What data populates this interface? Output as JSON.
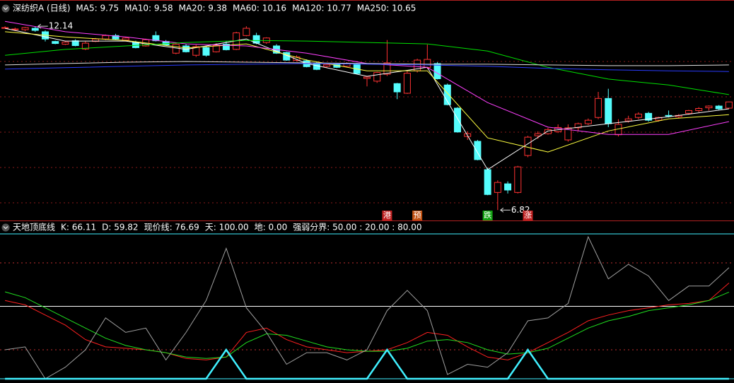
{
  "chart_data": [
    {
      "type": "candlestick",
      "title": "深纺织A (日线)",
      "xlim": [
        -0.5,
        72.5
      ],
      "ylim": [
        6.56,
        12.49
      ],
      "up_color": "#ff3232",
      "down_color": "#54fcfc",
      "candles": [
        [
          12.1,
          12.14,
          12.08,
          12.1
        ],
        [
          12.05,
          12.1,
          12.0,
          12.06
        ],
        [
          12.04,
          12.12,
          12.0,
          12.1
        ],
        [
          12.08,
          12.14,
          11.98,
          12.02
        ],
        [
          11.98,
          12.02,
          11.7,
          11.77
        ],
        [
          11.7,
          11.72,
          11.62,
          11.64
        ],
        [
          11.62,
          11.7,
          11.6,
          11.68
        ],
        [
          11.72,
          11.76,
          11.56,
          11.58
        ],
        [
          11.48,
          11.7,
          11.45,
          11.65
        ],
        [
          11.7,
          11.8,
          11.68,
          11.77
        ],
        [
          11.77,
          11.9,
          11.74,
          11.87
        ],
        [
          11.87,
          11.92,
          11.75,
          11.77
        ],
        [
          11.74,
          11.82,
          11.7,
          11.8
        ],
        [
          11.67,
          11.72,
          11.5,
          11.52
        ],
        [
          11.57,
          11.78,
          11.55,
          11.75
        ],
        [
          11.87,
          11.99,
          11.7,
          11.72
        ],
        [
          11.7,
          11.74,
          11.58,
          11.6
        ],
        [
          11.36,
          11.65,
          11.33,
          11.62
        ],
        [
          11.57,
          11.62,
          11.38,
          11.4
        ],
        [
          11.3,
          11.6,
          11.25,
          11.55
        ],
        [
          11.52,
          11.56,
          11.26,
          11.3
        ],
        [
          11.4,
          11.65,
          11.38,
          11.58
        ],
        [
          11.62,
          11.7,
          11.44,
          11.46
        ],
        [
          11.47,
          11.98,
          11.45,
          11.95
        ],
        [
          11.87,
          12.14,
          11.85,
          12.08
        ],
        [
          11.87,
          11.95,
          11.62,
          11.65
        ],
        [
          11.67,
          11.82,
          11.63,
          11.8
        ],
        [
          11.57,
          11.62,
          11.34,
          11.36
        ],
        [
          11.38,
          11.4,
          11.14,
          11.16
        ],
        [
          11.15,
          11.3,
          11.12,
          11.25
        ],
        [
          11.14,
          11.18,
          10.95,
          10.97
        ],
        [
          11.07,
          11.12,
          10.87,
          10.89
        ],
        [
          10.98,
          11.06,
          10.94,
          11.03
        ],
        [
          11.05,
          11.08,
          10.93,
          10.95
        ],
        [
          10.98,
          11.1,
          10.96,
          11.05
        ],
        [
          11.05,
          11.08,
          10.75,
          10.77
        ],
        [
          10.63,
          10.7,
          10.4,
          10.67
        ],
        [
          10.55,
          10.82,
          10.5,
          10.8
        ],
        [
          10.75,
          11.74,
          10.7,
          11.08
        ],
        [
          10.48,
          10.5,
          10.03,
          10.24
        ],
        [
          10.2,
          10.85,
          10.18,
          10.78
        ],
        [
          10.85,
          11.2,
          10.8,
          11.16
        ],
        [
          10.95,
          11.61,
          10.9,
          11.18
        ],
        [
          11.06,
          11.1,
          10.6,
          10.62
        ],
        [
          10.44,
          10.48,
          9.85,
          9.87
        ],
        [
          9.77,
          9.8,
          9.06,
          9.08
        ],
        [
          8.95,
          9.1,
          8.85,
          9.03
        ],
        [
          8.81,
          8.85,
          8.26,
          8.28
        ],
        [
          7.99,
          8.05,
          7.25,
          7.27
        ],
        [
          7.33,
          7.68,
          6.82,
          7.62
        ],
        [
          7.58,
          7.65,
          7.3,
          7.4
        ],
        [
          7.33,
          8.1,
          7.3,
          8.07
        ],
        [
          8.4,
          8.97,
          8.35,
          8.93
        ],
        [
          8.97,
          9.1,
          8.88,
          9.03
        ],
        [
          9.03,
          9.2,
          9.0,
          9.15
        ],
        [
          9.09,
          9.3,
          9.05,
          9.21
        ],
        [
          8.85,
          9.3,
          8.8,
          9.2
        ],
        [
          9.2,
          9.35,
          9.1,
          9.32
        ],
        [
          9.32,
          9.47,
          9.28,
          9.42
        ],
        [
          9.5,
          10.24,
          9.45,
          10.05
        ],
        [
          10.05,
          10.33,
          9.22,
          9.32
        ],
        [
          9.0,
          9.45,
          8.95,
          9.3
        ],
        [
          9.4,
          9.55,
          9.35,
          9.46
        ],
        [
          9.5,
          9.65,
          9.45,
          9.6
        ],
        [
          9.62,
          9.66,
          9.38,
          9.42
        ],
        [
          9.42,
          9.52,
          9.38,
          9.5
        ],
        [
          9.56,
          9.7,
          9.5,
          9.54
        ],
        [
          9.52,
          9.6,
          9.48,
          9.56
        ],
        [
          9.62,
          9.72,
          9.58,
          9.7
        ],
        [
          9.7,
          9.8,
          9.65,
          9.76
        ],
        [
          9.78,
          9.85,
          9.7,
          9.83
        ],
        [
          9.83,
          9.86,
          9.72,
          9.75
        ],
        [
          9.77,
          9.96,
          9.75,
          9.95
        ]
      ],
      "series": [
        {
          "name": "MA5: 9.75",
          "color": "#ffffff",
          "x": [
            0,
            6,
            12,
            18,
            24,
            30,
            36,
            42,
            48,
            54,
            60,
            66,
            72
          ],
          "values": [
            12.08,
            11.71,
            11.71,
            11.47,
            11.77,
            11.06,
            10.69,
            10.95,
            7.99,
            9.11,
            9.32,
            9.52,
            9.75
          ]
        },
        {
          "name": "MA10: 9.58",
          "color": "#ffff40",
          "x": [
            0,
            6,
            12,
            18,
            24,
            30,
            36,
            42,
            48,
            54,
            60,
            66,
            72
          ],
          "values": [
            11.98,
            11.83,
            11.73,
            11.51,
            11.63,
            11.16,
            10.85,
            10.85,
            8.91,
            8.5,
            9.11,
            9.46,
            9.58
          ]
        },
        {
          "name": "MA20: 9.38",
          "color": "#ff40ff",
          "x": [
            0,
            6,
            12,
            18,
            24,
            30,
            36,
            42,
            48,
            54,
            60,
            66,
            72
          ],
          "values": [
            12.28,
            11.98,
            11.83,
            11.63,
            11.57,
            11.36,
            11.06,
            10.95,
            9.93,
            9.22,
            9.01,
            9.01,
            9.38
          ]
        },
        {
          "name": "MA60: 10.16",
          "color": "#00e000",
          "x": [
            0,
            6,
            12,
            18,
            24,
            30,
            36,
            42,
            48,
            54,
            60,
            66,
            72
          ],
          "values": [
            11.3,
            11.47,
            11.57,
            11.67,
            11.73,
            11.71,
            11.67,
            11.63,
            11.42,
            10.95,
            10.61,
            10.44,
            10.16
          ]
        },
        {
          "name": "MA120: 10.77",
          "color": "#e0e0e0",
          "x": [
            0,
            6,
            12,
            18,
            24,
            30,
            36,
            42,
            48,
            54,
            60,
            66,
            72
          ],
          "values": [
            11.02,
            11.06,
            11.1,
            11.12,
            11.1,
            11.08,
            11.06,
            11.04,
            11.04,
            11.02,
            11.0,
            11.0,
            11.02
          ]
        },
        {
          "name": "MA250: 10.65",
          "color": "#2a3cff",
          "x": [
            0,
            6,
            12,
            18,
            24,
            30,
            36,
            42,
            48,
            54,
            60,
            66,
            72
          ],
          "values": [
            10.9,
            10.94,
            10.98,
            11.02,
            11.04,
            11.06,
            11.04,
            11.02,
            10.98,
            10.92,
            10.88,
            10.85,
            10.83
          ]
        }
      ],
      "annotations": [
        {
          "x": 3,
          "y": 12.14,
          "label": "12.14"
        },
        {
          "x": 49,
          "y": 6.82,
          "label": "6.82"
        }
      ],
      "markers": [
        {
          "x": 38,
          "text": "港",
          "color": "#c02020"
        },
        {
          "x": 41,
          "text": "预",
          "color": "#c05010"
        },
        {
          "x": 48,
          "text": "跌",
          "color": "#10a010"
        },
        {
          "x": 52,
          "text": "涨",
          "color": "#c02020"
        }
      ]
    },
    {
      "type": "line",
      "title": "天地顶底线",
      "xlim": [
        -0.5,
        72.5
      ],
      "ylim": [
        0,
        100
      ],
      "x": [
        0,
        2,
        4,
        6,
        8,
        10,
        12,
        14,
        16,
        18,
        20,
        22,
        24,
        26,
        28,
        30,
        32,
        34,
        36,
        38,
        40,
        42,
        44,
        46,
        48,
        50,
        52,
        54,
        56,
        58,
        60,
        62,
        64,
        66,
        68,
        70,
        72
      ],
      "series": [
        {
          "name": "K: 66.11",
          "color": "#ff2020",
          "values": [
            54,
            51,
            44,
            37,
            27,
            22,
            21,
            20,
            18,
            14,
            13,
            15,
            32,
            35,
            27,
            22,
            20,
            18,
            19,
            20,
            25,
            32,
            30,
            22,
            15,
            13,
            18,
            25,
            32,
            40,
            44,
            47,
            49,
            51,
            52,
            54,
            66.11
          ]
        },
        {
          "name": "D: 59.82",
          "color": "#20e020",
          "values": [
            60,
            56,
            49,
            42,
            35,
            28,
            23,
            20,
            18,
            15,
            14,
            15,
            25,
            31,
            30,
            26,
            22,
            20,
            19,
            19,
            21,
            26,
            27,
            25,
            20,
            17,
            18,
            21,
            28,
            35,
            40,
            43,
            47,
            49,
            51,
            54,
            59.82
          ]
        },
        {
          "name": "现价线: 76.69",
          "color": "#a0a0a0",
          "values": [
            20,
            22,
            0,
            8,
            20,
            42,
            32,
            35,
            13,
            32,
            54,
            90,
            49,
            32,
            10,
            18,
            18,
            13,
            20,
            47,
            61,
            47,
            3,
            10,
            8,
            18,
            40,
            42,
            52,
            98,
            69,
            79,
            71,
            54,
            64,
            64,
            76.69
          ]
        },
        {
          "color": "#40f0ff",
          "values": [
            0,
            0,
            0,
            0,
            0,
            0,
            0,
            0,
            0,
            0,
            0,
            20,
            0,
            0,
            0,
            0,
            0,
            0,
            0,
            20,
            0,
            0,
            0,
            0,
            0,
            0,
            20,
            0,
            0,
            0,
            0,
            0,
            0,
            0,
            0,
            0,
            0
          ]
        }
      ],
      "hlines": [
        {
          "value": 100,
          "color": "#40f0ff",
          "label": "天: 100.00"
        },
        {
          "value": 0,
          "color": "#40f0ff",
          "label": "地: 0.00"
        },
        {
          "value": 50,
          "color": "#ffffff",
          "style": "solid"
        },
        {
          "value": 20,
          "color": "#c03030",
          "style": "dotted"
        },
        {
          "value": 80,
          "color": "#c03030",
          "style": "dotted"
        }
      ],
      "legend_text": "强弱分界: 50.00 : 20.00 : 80.00"
    }
  ]
}
